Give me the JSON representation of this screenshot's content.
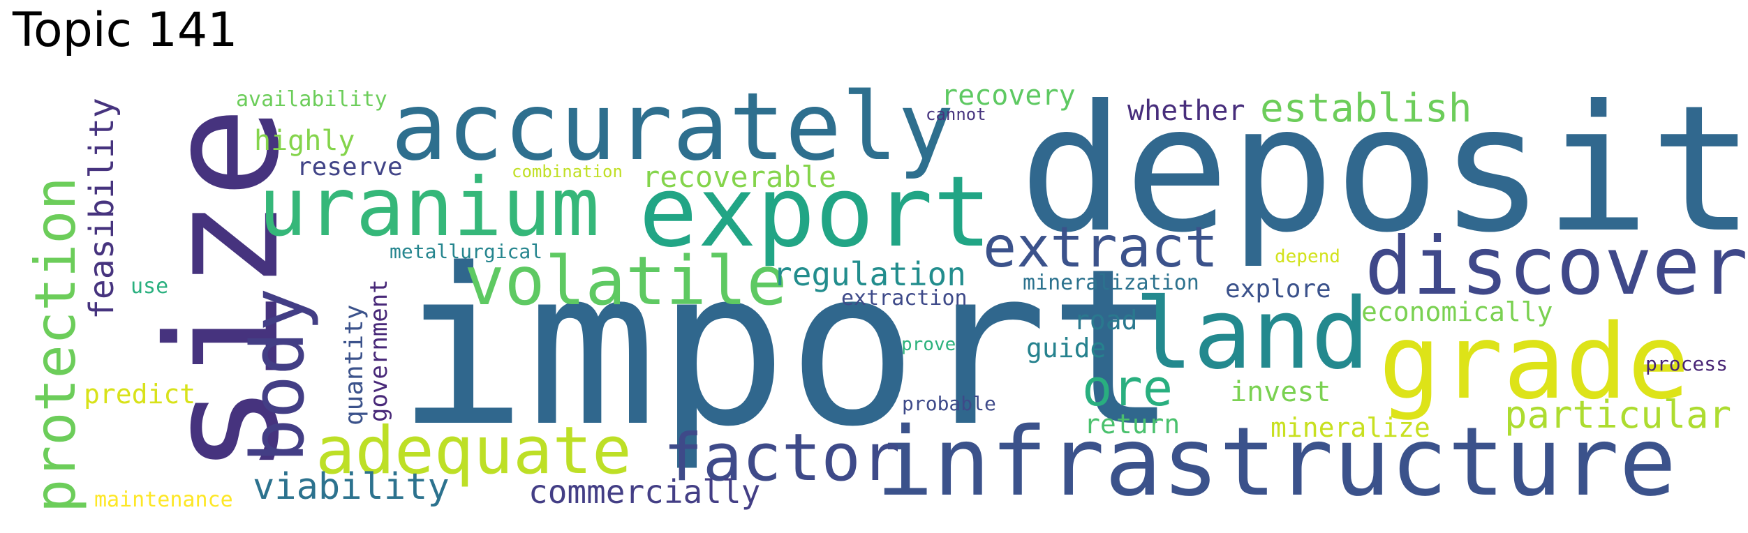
{
  "title": "Topic 141",
  "words": [
    {
      "text": "import",
      "color": "#30678d"
    },
    {
      "text": "deposit",
      "color": "#31688e"
    },
    {
      "text": "size",
      "color": "#46337e"
    },
    {
      "text": "infrastructure",
      "color": "#3b528b"
    },
    {
      "text": "accurately",
      "color": "#2e6f8e"
    },
    {
      "text": "export",
      "color": "#21a585"
    },
    {
      "text": "uranium",
      "color": "#35b779"
    },
    {
      "text": "land",
      "color": "#23898e"
    },
    {
      "text": "grade",
      "color": "#dde318"
    },
    {
      "text": "discover",
      "color": "#3f4889"
    },
    {
      "text": "body",
      "color": "#433e85"
    },
    {
      "text": "protection",
      "color": "#6ccd5a"
    },
    {
      "text": "adequate",
      "color": "#bddf26"
    },
    {
      "text": "factor",
      "color": "#3e4a89"
    },
    {
      "text": "volatile",
      "color": "#5ec962"
    },
    {
      "text": "extract",
      "color": "#3b528b"
    },
    {
      "text": "ore",
      "color": "#29af7f"
    },
    {
      "text": "feasibility",
      "color": "#46337e"
    },
    {
      "text": "establish",
      "color": "#6ccd5a"
    },
    {
      "text": "particular",
      "color": "#addc30"
    },
    {
      "text": "viability",
      "color": "#2c728e"
    },
    {
      "text": "regulation",
      "color": "#228d8d"
    },
    {
      "text": "commercially",
      "color": "#433e85"
    },
    {
      "text": "recoverable",
      "color": "#84d44b"
    },
    {
      "text": "recovery",
      "color": "#5ec962"
    },
    {
      "text": "whether",
      "color": "#472d7b"
    },
    {
      "text": "highly",
      "color": "#84d44b"
    },
    {
      "text": "invest",
      "color": "#7ad151"
    },
    {
      "text": "economically",
      "color": "#7ad151"
    },
    {
      "text": "mineralize",
      "color": "#c8e020"
    },
    {
      "text": "return",
      "color": "#4ac16d"
    },
    {
      "text": "explore",
      "color": "#3b528b"
    },
    {
      "text": "reserve",
      "color": "#414487"
    },
    {
      "text": "predict",
      "color": "#d8e219"
    },
    {
      "text": "quantity",
      "color": "#3b528b"
    },
    {
      "text": "government",
      "color": "#482878"
    },
    {
      "text": "guide",
      "color": "#26828e"
    },
    {
      "text": "road",
      "color": "#2a788e"
    },
    {
      "text": "extraction",
      "color": "#3e4a89"
    },
    {
      "text": "mineralization",
      "color": "#2c728e"
    },
    {
      "text": "availability",
      "color": "#6ccd5a"
    },
    {
      "text": "maintenance",
      "color": "#fde725"
    },
    {
      "text": "metallurgical",
      "color": "#25858e"
    },
    {
      "text": "use",
      "color": "#2ab07f"
    },
    {
      "text": "process",
      "color": "#482475"
    },
    {
      "text": "probable",
      "color": "#3e4a89"
    },
    {
      "text": "combination",
      "color": "#c0df25"
    },
    {
      "text": "cannot",
      "color": "#46337e"
    },
    {
      "text": "depend",
      "color": "#d2e21b"
    },
    {
      "text": "prove",
      "color": "#2db27d"
    }
  ]
}
